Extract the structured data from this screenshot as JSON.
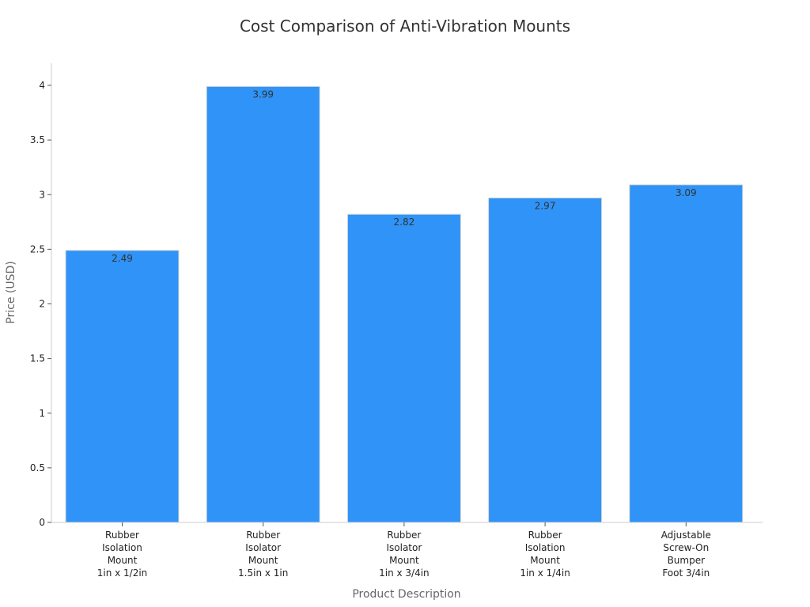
{
  "chart_data": {
    "type": "bar",
    "title": "Cost Comparison of Anti-Vibration Mounts",
    "xlabel": "Product Description",
    "ylabel": "Price (USD)",
    "categories": [
      [
        "Rubber",
        "Isolation",
        "Mount",
        "1in x 1/2in"
      ],
      [
        "Rubber",
        "Isolator",
        "Mount",
        "1.5in x 1in"
      ],
      [
        "Rubber",
        "Isolator",
        "Mount",
        "1in x 3/4in"
      ],
      [
        "Rubber",
        "Isolation",
        "Mount",
        "1in x 1/4in"
      ],
      [
        "Adjustable",
        "Screw-On",
        "Bumper",
        "Foot 3/4in"
      ]
    ],
    "values": [
      2.49,
      3.99,
      2.82,
      2.97,
      3.09
    ],
    "value_labels": [
      "2.49",
      "3.99",
      "2.82",
      "2.97",
      "3.09"
    ],
    "yticks": [
      "0",
      "0.5",
      "1",
      "1.5",
      "2",
      "2.5",
      "3",
      "3.5",
      "4"
    ],
    "ylim": [
      0,
      4.2
    ],
    "grid": false,
    "bar_color": "#2f93f7",
    "bar_edge_color": "#d9d9d9"
  }
}
